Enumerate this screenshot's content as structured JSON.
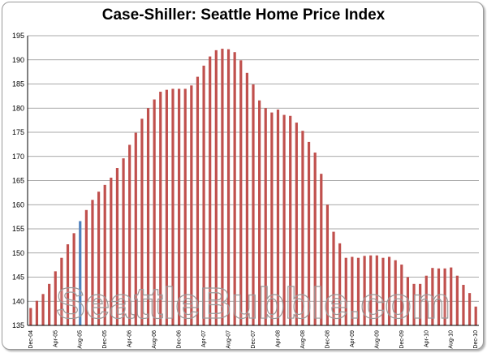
{
  "watermark": "SeattleBubble.com",
  "chart_data": {
    "type": "bar",
    "title": "Case-Shiller: Seattle Home Price Index",
    "xlabel": "",
    "ylabel": "",
    "ylim": [
      135,
      195
    ],
    "yticks": [
      135,
      140,
      145,
      150,
      155,
      160,
      165,
      170,
      175,
      180,
      185,
      190,
      195
    ],
    "grid": true,
    "legend": "none",
    "colors": {
      "bar": "#c0504d",
      "highlight": "#4f81bd",
      "grid": "#8c8c8c"
    },
    "highlight_category": "Aug-05",
    "categories": [
      "Dec-04",
      "Jan-05",
      "Feb-05",
      "Mar-05",
      "Apr-05",
      "May-05",
      "Jun-05",
      "Jul-05",
      "Aug-05",
      "Sep-05",
      "Oct-05",
      "Nov-05",
      "Dec-05",
      "Jan-06",
      "Feb-06",
      "Mar-06",
      "Apr-06",
      "May-06",
      "Jun-06",
      "Jul-06",
      "Aug-06",
      "Sep-06",
      "Oct-06",
      "Nov-06",
      "Dec-06",
      "Jan-07",
      "Feb-07",
      "Mar-07",
      "Apr-07",
      "May-07",
      "Jun-07",
      "Jul-07",
      "Aug-07",
      "Sep-07",
      "Oct-07",
      "Nov-07",
      "Dec-07",
      "Jan-08",
      "Feb-08",
      "Mar-08",
      "Apr-08",
      "May-08",
      "Jun-08",
      "Jul-08",
      "Aug-08",
      "Sep-08",
      "Oct-08",
      "Nov-08",
      "Dec-08",
      "Jan-09",
      "Feb-09",
      "Mar-09",
      "Apr-09",
      "May-09",
      "Jun-09",
      "Jul-09",
      "Aug-09",
      "Sep-09",
      "Oct-09",
      "Nov-09",
      "Dec-09",
      "Jan-10",
      "Feb-10",
      "Mar-10",
      "Apr-10",
      "May-10",
      "Jun-10",
      "Jul-10",
      "Aug-10",
      "Sep-10",
      "Oct-10",
      "Nov-10",
      "Dec-10"
    ],
    "tick_labels": [
      "Dec-04",
      "Apr-05",
      "Aug-05",
      "Dec-05",
      "Apr-06",
      "Aug-06",
      "Dec-06",
      "Apr-07",
      "Aug-07",
      "Dec-07",
      "Apr-08",
      "Aug-08",
      "Dec-08",
      "Apr-09",
      "Aug-09",
      "Dec-09",
      "Apr-10",
      "Aug-10",
      "Dec-10"
    ],
    "values": [
      138.6,
      140.1,
      141.5,
      143.6,
      146.2,
      149.0,
      151.8,
      154.1,
      156.6,
      158.9,
      161.0,
      162.7,
      164.1,
      165.6,
      167.6,
      169.6,
      172.4,
      174.9,
      177.8,
      180.0,
      181.8,
      183.4,
      183.8,
      184.0,
      184.0,
      184.0,
      184.7,
      186.5,
      188.8,
      190.7,
      192.0,
      192.3,
      192.2,
      191.6,
      189.9,
      187.3,
      184.9,
      181.6,
      180.0,
      179.1,
      179.7,
      178.6,
      178.4,
      177.0,
      175.3,
      173.0,
      170.8,
      166.4,
      160.0,
      154.4,
      152.0,
      149.0,
      149.2,
      149.0,
      149.4,
      149.5,
      149.5,
      149.0,
      149.2,
      148.5,
      147.6,
      145.0,
      143.6,
      143.6,
      145.3,
      146.9,
      146.8,
      146.8,
      147.0,
      145.3,
      143.4,
      141.7,
      138.9
    ]
  }
}
